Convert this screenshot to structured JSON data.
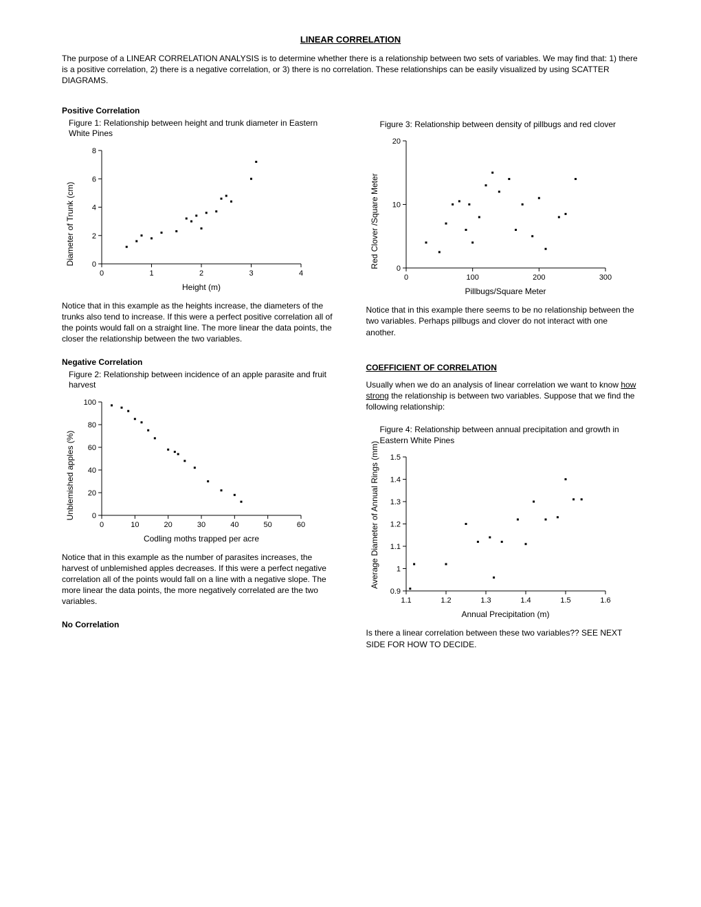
{
  "title": "LINEAR CORRELATION",
  "intro": "The purpose of a LINEAR CORRELATION ANALYSIS is to determine whether there is a relationship between two sets of variables.  We may find that: 1) there is a positive correlation, 2) there is a negative correlation, or 3) there is no correlation.  These relationships can be easily visualized by using SCATTER DIAGRAMS.",
  "left": {
    "pos_head": "Positive Correlation",
    "fig1": {
      "title": "Figure 1: Relationship between height and trunk diameter in Eastern White Pines",
      "xlabel": "Height (m)",
      "ylabel": "Diameter of Trunk (cm)",
      "xlim": [
        0,
        4
      ],
      "ylim": [
        0,
        8
      ],
      "xticks": [
        0,
        1,
        2,
        3,
        4
      ],
      "yticks": [
        0,
        2,
        4,
        6,
        8
      ],
      "points": [
        [
          0.5,
          1.2
        ],
        [
          0.7,
          1.6
        ],
        [
          0.8,
          2.0
        ],
        [
          1.0,
          1.8
        ],
        [
          1.2,
          2.2
        ],
        [
          1.5,
          2.3
        ],
        [
          1.7,
          3.2
        ],
        [
          1.8,
          3.0
        ],
        [
          1.9,
          3.4
        ],
        [
          2.0,
          2.5
        ],
        [
          2.1,
          3.6
        ],
        [
          2.3,
          3.7
        ],
        [
          2.4,
          4.6
        ],
        [
          2.5,
          4.8
        ],
        [
          2.6,
          4.4
        ],
        [
          3.0,
          6.0
        ],
        [
          3.1,
          7.2
        ]
      ],
      "bg": "#ffffff",
      "pt_color": "#000000",
      "pt_size": 3
    },
    "pos_text": "Notice that in this example as the heights increase,  the diameters of the trunks also tend to increase.  If this were a perfect positive correlation all of the points would fall on a straight line.  The more linear the data points, the closer the relationship between the two variables.",
    "neg_head": "Negative Correlation",
    "fig2": {
      "title": "Figure 2: Relationship between incidence of an apple parasite and fruit harvest",
      "xlabel": "Codling moths trapped per acre",
      "ylabel": "Unblemished apples (%)",
      "xlim": [
        0,
        60
      ],
      "ylim": [
        0,
        100
      ],
      "xticks": [
        0,
        10,
        20,
        30,
        40,
        50,
        60
      ],
      "yticks": [
        0,
        20,
        40,
        60,
        80,
        100
      ],
      "points": [
        [
          3,
          97
        ],
        [
          6,
          95
        ],
        [
          8,
          92
        ],
        [
          10,
          85
        ],
        [
          12,
          82
        ],
        [
          14,
          75
        ],
        [
          16,
          68
        ],
        [
          20,
          58
        ],
        [
          22,
          56
        ],
        [
          23,
          54
        ],
        [
          25,
          48
        ],
        [
          28,
          42
        ],
        [
          32,
          30
        ],
        [
          36,
          22
        ],
        [
          40,
          18
        ],
        [
          42,
          12
        ]
      ],
      "bg": "#ffffff",
      "pt_color": "#000000",
      "pt_size": 3
    },
    "neg_text": "Notice that in this example as the number of parasites increases, the harvest of unblemished apples decreases.  If this were a perfect negative correlation all of the points would fall on a line with a negative slope.  The more linear the data points, the more negatively correlated are the two variables.",
    "nocorr_head": "No Correlation"
  },
  "right": {
    "fig3": {
      "title": "Figure 3: Relationship between density of pillbugs and red clover",
      "xlabel": "Pillbugs/Square Meter",
      "ylabel": "Red Clover /Square Meter",
      "xlim": [
        0,
        300
      ],
      "ylim": [
        0,
        20
      ],
      "xticks": [
        0,
        100,
        200,
        300
      ],
      "yticks": [
        0,
        10,
        20
      ],
      "points": [
        [
          30,
          4
        ],
        [
          50,
          2.5
        ],
        [
          60,
          7
        ],
        [
          70,
          10
        ],
        [
          80,
          10.5
        ],
        [
          90,
          6
        ],
        [
          95,
          10
        ],
        [
          100,
          4
        ],
        [
          110,
          8
        ],
        [
          120,
          13
        ],
        [
          130,
          15
        ],
        [
          140,
          12
        ],
        [
          155,
          14
        ],
        [
          165,
          6
        ],
        [
          175,
          10
        ],
        [
          190,
          5
        ],
        [
          200,
          11
        ],
        [
          210,
          3
        ],
        [
          230,
          8
        ],
        [
          240,
          8.5
        ],
        [
          255,
          14
        ]
      ],
      "bg": "#ffffff",
      "pt_color": "#000000",
      "pt_size": 3
    },
    "fig3_text": "Notice that in this example there seems to be no relationship between the two variables.  Perhaps pillbugs and clover do not interact with one another.",
    "coef_head": "COEFFICIENT OF CORRELATION",
    "coef_text_pre": "Usually when we do an analysis of linear correlation we want to know ",
    "coef_text_u1": "how",
    "coef_text_mid": " ",
    "coef_text_u2": "strong",
    "coef_text_post": " the relationship is between two variables.  Suppose that we find the following relationship:",
    "fig4": {
      "title": "Figure 4: Relationship between annual precipitation and growth in Eastern White Pines",
      "xlabel": "Annual Precipitation (m)",
      "ylabel": "Average Diameter of Annual Rings (mm)",
      "xlim": [
        1.1,
        1.6
      ],
      "ylim": [
        0.9,
        1.5
      ],
      "xticks": [
        1.1,
        1.2,
        1.3,
        1.4,
        1.5,
        1.6
      ],
      "yticks": [
        0.9,
        1.0,
        1.1,
        1.2,
        1.3,
        1.4,
        1.5
      ],
      "points": [
        [
          1.12,
          1.02
        ],
        [
          1.11,
          0.91
        ],
        [
          1.2,
          1.02
        ],
        [
          1.25,
          1.2
        ],
        [
          1.28,
          1.12
        ],
        [
          1.31,
          1.14
        ],
        [
          1.32,
          0.96
        ],
        [
          1.34,
          1.12
        ],
        [
          1.38,
          1.22
        ],
        [
          1.4,
          1.11
        ],
        [
          1.42,
          1.3
        ],
        [
          1.45,
          1.22
        ],
        [
          1.48,
          1.23
        ],
        [
          1.5,
          1.4
        ],
        [
          1.52,
          1.31
        ],
        [
          1.54,
          1.31
        ]
      ],
      "bg": "#ffffff",
      "pt_color": "#000000",
      "pt_size": 3
    },
    "fig4_text": "Is there a linear correlation between these two variables??  SEE NEXT SIDE FOR HOW TO DECIDE."
  }
}
